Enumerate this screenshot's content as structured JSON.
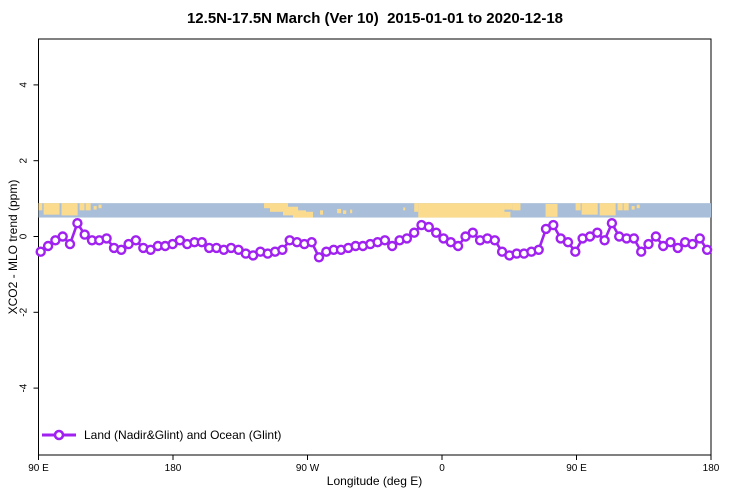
{
  "header": {
    "title": "12.5N-17.5N March (Ver 10)  2015-01-01 to 2020-12-18"
  },
  "chart_data": {
    "type": "line",
    "title": "12.5N-17.5N March (Ver 10)  2015-01-01 to 2020-12-18",
    "xlabel": "Longitude (deg E)",
    "ylabel": "XCO2 - MLO trend (ppm)",
    "x_axis": {
      "tick_lons_deg": [
        90,
        180,
        270,
        360,
        450,
        540
      ],
      "tick_labels": [
        "90 E",
        "180",
        "90 W",
        "0",
        "90 E",
        "180"
      ],
      "range_deg": [
        90,
        540
      ]
    },
    "y_axis": {
      "ticks": [
        -4,
        -2,
        0,
        2,
        4
      ],
      "range": [
        -5.2,
        5.2
      ]
    },
    "grid": false,
    "legend": {
      "position": "bottom-left",
      "entries": [
        {
          "label": "Land (Nadir&Glint) and Ocean (Glint)",
          "color": "#A021F0",
          "marker": "open-circle-on-line"
        }
      ]
    },
    "series": [
      {
        "name": "Land (Nadir&Glint) and Ocean (Glint)",
        "color": "#A021F0",
        "marker": "open-circle",
        "lon_start_deg": 91.5,
        "lon_step_deg": 4.9,
        "values_ppm": [
          -0.4,
          -0.25,
          -0.1,
          0.0,
          -0.2,
          0.35,
          0.05,
          -0.1,
          -0.1,
          -0.05,
          -0.3,
          -0.35,
          -0.2,
          -0.1,
          -0.3,
          -0.35,
          -0.25,
          -0.25,
          -0.2,
          -0.1,
          -0.2,
          -0.15,
          -0.15,
          -0.3,
          -0.3,
          -0.35,
          -0.3,
          -0.35,
          -0.45,
          -0.5,
          -0.4,
          -0.45,
          -0.4,
          -0.35,
          -0.1,
          -0.15,
          -0.2,
          -0.15,
          -0.55,
          -0.4,
          -0.35,
          -0.35,
          -0.3,
          -0.25,
          -0.25,
          -0.2,
          -0.15,
          -0.1,
          -0.25,
          -0.1,
          -0.05,
          0.1,
          0.3,
          0.25,
          0.1,
          -0.05,
          -0.15,
          -0.25,
          0.0,
          0.1,
          -0.1,
          -0.05,
          -0.1,
          -0.4,
          -0.5,
          -0.45,
          -0.45,
          -0.4,
          -0.35,
          0.2,
          0.3,
          -0.05,
          -0.15,
          -0.4,
          -0.05,
          0.0,
          0.1,
          -0.1,
          0.35,
          0.0,
          -0.05,
          -0.05,
          -0.4,
          -0.2,
          0.0,
          -0.25,
          -0.15,
          -0.3,
          -0.15,
          -0.2,
          -0.05,
          -0.35
        ]
      }
    ],
    "coastline_band": {
      "lat_range": "12.5N-17.5N",
      "ppm_range": [
        0.5,
        0.88
      ],
      "ocean_color": "#A9BED9",
      "land_color": "#FBDB8E",
      "land_segments_deg": [
        [
          90.0,
          92.5,
          0.0,
          0.5
        ],
        [
          93.4,
          104.1,
          0.0,
          0.8
        ],
        [
          105.4,
          116.2,
          0.0,
          0.85
        ],
        [
          117.5,
          120.8,
          0.0,
          0.5
        ],
        [
          121.5,
          124.9,
          0.0,
          0.5
        ],
        [
          126.9,
          128.9,
          0.2,
          0.45
        ],
        [
          130.2,
          132.2,
          0.1,
          0.35
        ],
        [
          240.9,
          246.2,
          0.0,
          0.35
        ],
        [
          244.9,
          257.0,
          0.0,
          0.6
        ],
        [
          253.6,
          263.7,
          0.25,
          0.85
        ],
        [
          260.3,
          269.0,
          0.5,
          1.0
        ],
        [
          269.0,
          273.7,
          0.6,
          1.0
        ],
        [
          278.4,
          280.4,
          0.5,
          0.8
        ],
        [
          289.8,
          292.5,
          0.4,
          0.7
        ],
        [
          293.8,
          295.9,
          0.5,
          0.75
        ],
        [
          298.5,
          299.9,
          0.45,
          0.7
        ],
        [
          334.1,
          335.4,
          0.3,
          0.5
        ],
        [
          341.4,
          344.1,
          0.0,
          0.6
        ],
        [
          344.1,
          401.8,
          0.0,
          1.0
        ],
        [
          401.8,
          407.1,
          0.0,
          0.45
        ],
        [
          401.8,
          405.8,
          0.6,
          1.0
        ],
        [
          407.1,
          412.5,
          0.0,
          0.5
        ],
        [
          429.3,
          437.3,
          0.05,
          0.95
        ],
        [
          449.4,
          452.8,
          0.0,
          0.5
        ],
        [
          453.4,
          464.2,
          0.0,
          0.8
        ],
        [
          465.5,
          476.2,
          0.0,
          0.85
        ],
        [
          477.5,
          480.9,
          0.0,
          0.5
        ],
        [
          481.5,
          484.9,
          0.0,
          0.5
        ],
        [
          486.9,
          488.9,
          0.2,
          0.45
        ],
        [
          490.3,
          492.3,
          0.1,
          0.35
        ]
      ]
    }
  }
}
